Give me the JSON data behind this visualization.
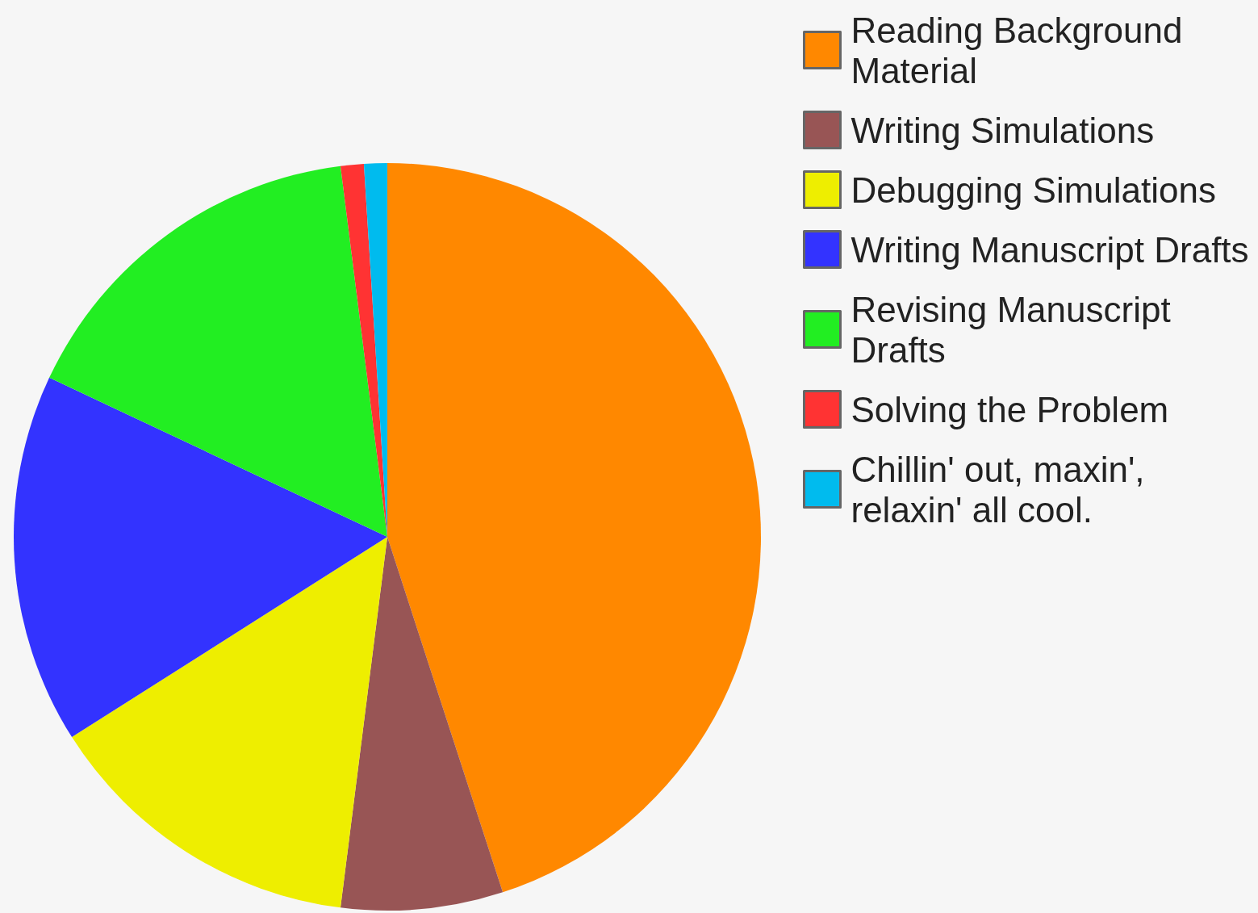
{
  "chart_data": {
    "type": "pie",
    "categories": [
      "Reading Background Material",
      "Writing Simulations",
      "Debugging Simulations",
      "Writing Manuscript Drafts",
      "Revising Manuscript Drafts",
      "Solving the Problem",
      "Chillin' out, maxin', relaxin' all cool."
    ],
    "values": [
      45,
      7,
      14,
      16,
      16,
      1,
      1
    ],
    "colors": [
      "#ff8800",
      "#985555",
      "#eeee00",
      "#3333ff",
      "#22ee22",
      "#ff3333",
      "#00bbee"
    ],
    "legend": "top right"
  }
}
